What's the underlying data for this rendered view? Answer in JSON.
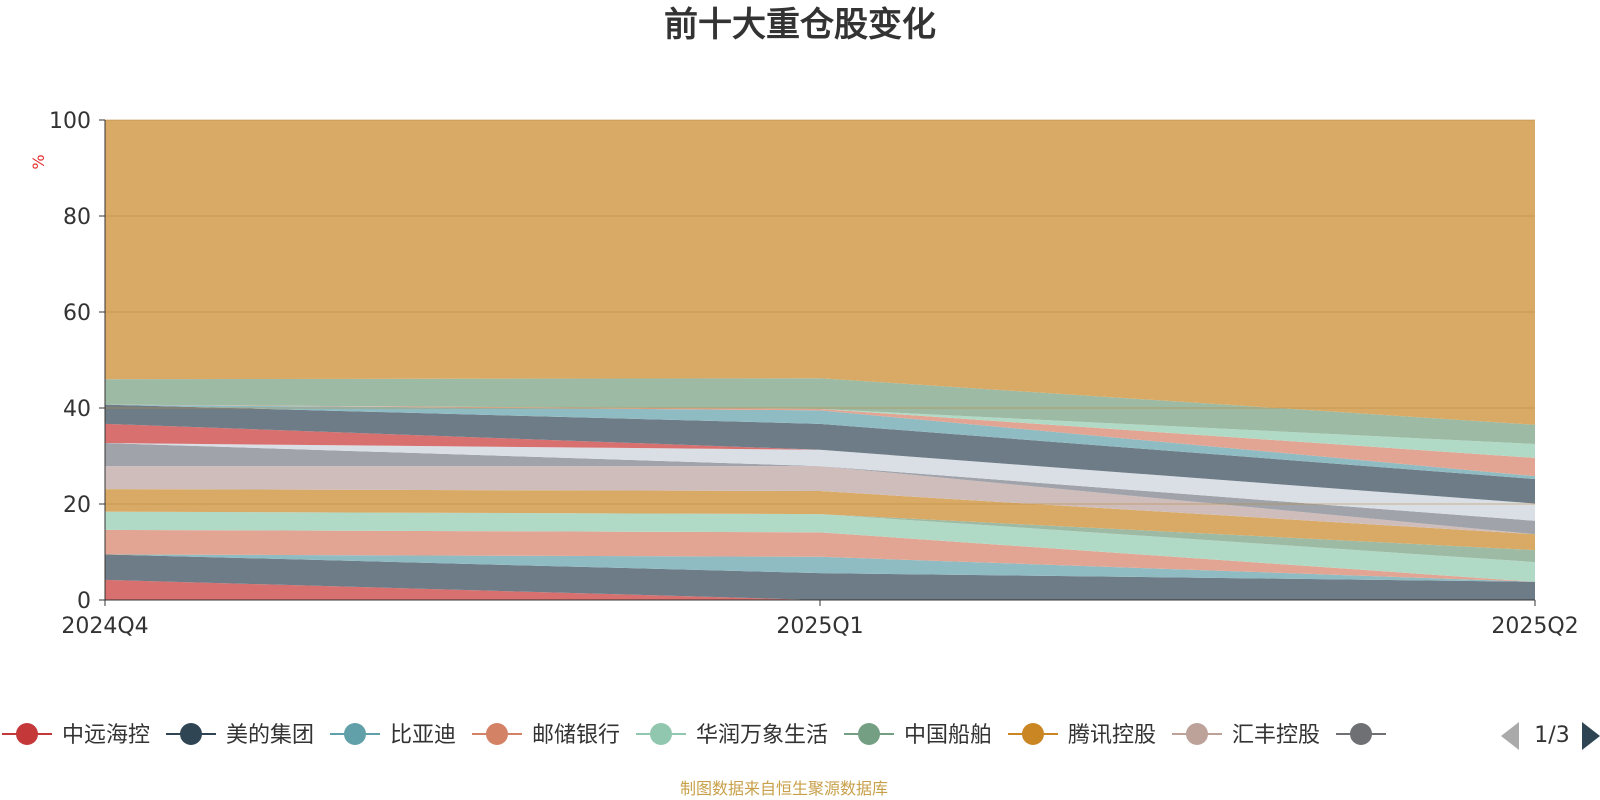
{
  "chart_data": {
    "type": "area",
    "title": "前十大重仓股变化",
    "ylabel": "%",
    "ylim": [
      0,
      100
    ],
    "yticks": [
      0,
      20,
      40,
      60,
      80,
      100
    ],
    "categories": [
      "2024Q4",
      "2025Q1",
      "2025Q2"
    ],
    "grid": true,
    "stacked": true,
    "series": [
      {
        "name": "中远海控",
        "color": "#d7706e",
        "values": [
          4.2,
          0.0,
          0.0
        ]
      },
      {
        "name": "美的集团",
        "color": "#6e7c88",
        "values": [
          5.3,
          5.6,
          3.8
        ]
      },
      {
        "name": "比亚迪",
        "color": "#8fbcc3",
        "values": [
          0.0,
          3.4,
          0.0
        ]
      },
      {
        "name": "邮储银行",
        "color": "#e3a593",
        "values": [
          5.1,
          5.1,
          0.0
        ]
      },
      {
        "name": "华润万象生活",
        "color": "#b1dac6",
        "values": [
          3.8,
          3.8,
          4.1
        ]
      },
      {
        "name": "中国船舶",
        "color": "#9dbaa4",
        "values": [
          0.0,
          0.0,
          2.5
        ]
      },
      {
        "name": "腾讯控股",
        "color": "#d9aa66",
        "values": [
          4.7,
          4.8,
          3.3
        ]
      },
      {
        "name": "汇丰控股",
        "color": "#cfbdbb",
        "values": [
          4.8,
          5.2,
          0.0
        ]
      },
      {
        "name": "",
        "color": "#a0a3a9",
        "values": [
          4.8,
          0.0,
          2.8
        ]
      },
      {
        "name": "",
        "color": "#dadfe6",
        "values": [
          0.0,
          3.4,
          3.6
        ]
      },
      {
        "name": "",
        "color": "#d7706e",
        "values": [
          4.0,
          0.0,
          0.0
        ]
      },
      {
        "name": "",
        "color": "#6e7c88",
        "values": [
          4.0,
          5.4,
          5.1
        ]
      },
      {
        "name": "",
        "color": "#8fbcc3",
        "values": [
          0.0,
          2.8,
          0.6
        ]
      },
      {
        "name": "",
        "color": "#e3a593",
        "values": [
          0.0,
          0.3,
          3.8
        ]
      },
      {
        "name": "",
        "color": "#b1dac6",
        "values": [
          0.0,
          0.0,
          2.9
        ]
      },
      {
        "name": "",
        "color": "#9dbaa4",
        "values": [
          5.3,
          6.4,
          4.0
        ]
      },
      {
        "name": "",
        "color": "#d9aa66",
        "values": [
          54.0,
          53.8,
          63.5
        ]
      }
    ],
    "legend": {
      "position": "bottom",
      "items": [
        {
          "name": "中远海控",
          "color": "#c5383a"
        },
        {
          "name": "美的集团",
          "color": "#2f4554"
        },
        {
          "name": "比亚迪",
          "color": "#61a0a8"
        },
        {
          "name": "邮储银行",
          "color": "#d48265"
        },
        {
          "name": "华润万象生活",
          "color": "#91c7ae"
        },
        {
          "name": "中国船舶",
          "color": "#749f83"
        },
        {
          "name": "腾讯控股",
          "color": "#ca8622"
        },
        {
          "name": "汇丰控股",
          "color": "#bda29a"
        },
        {
          "name": "",
          "color": "#6e7074"
        }
      ],
      "page_indicator": "1/3"
    },
    "source_note": "制图数据来自恒生聚源数据库"
  }
}
